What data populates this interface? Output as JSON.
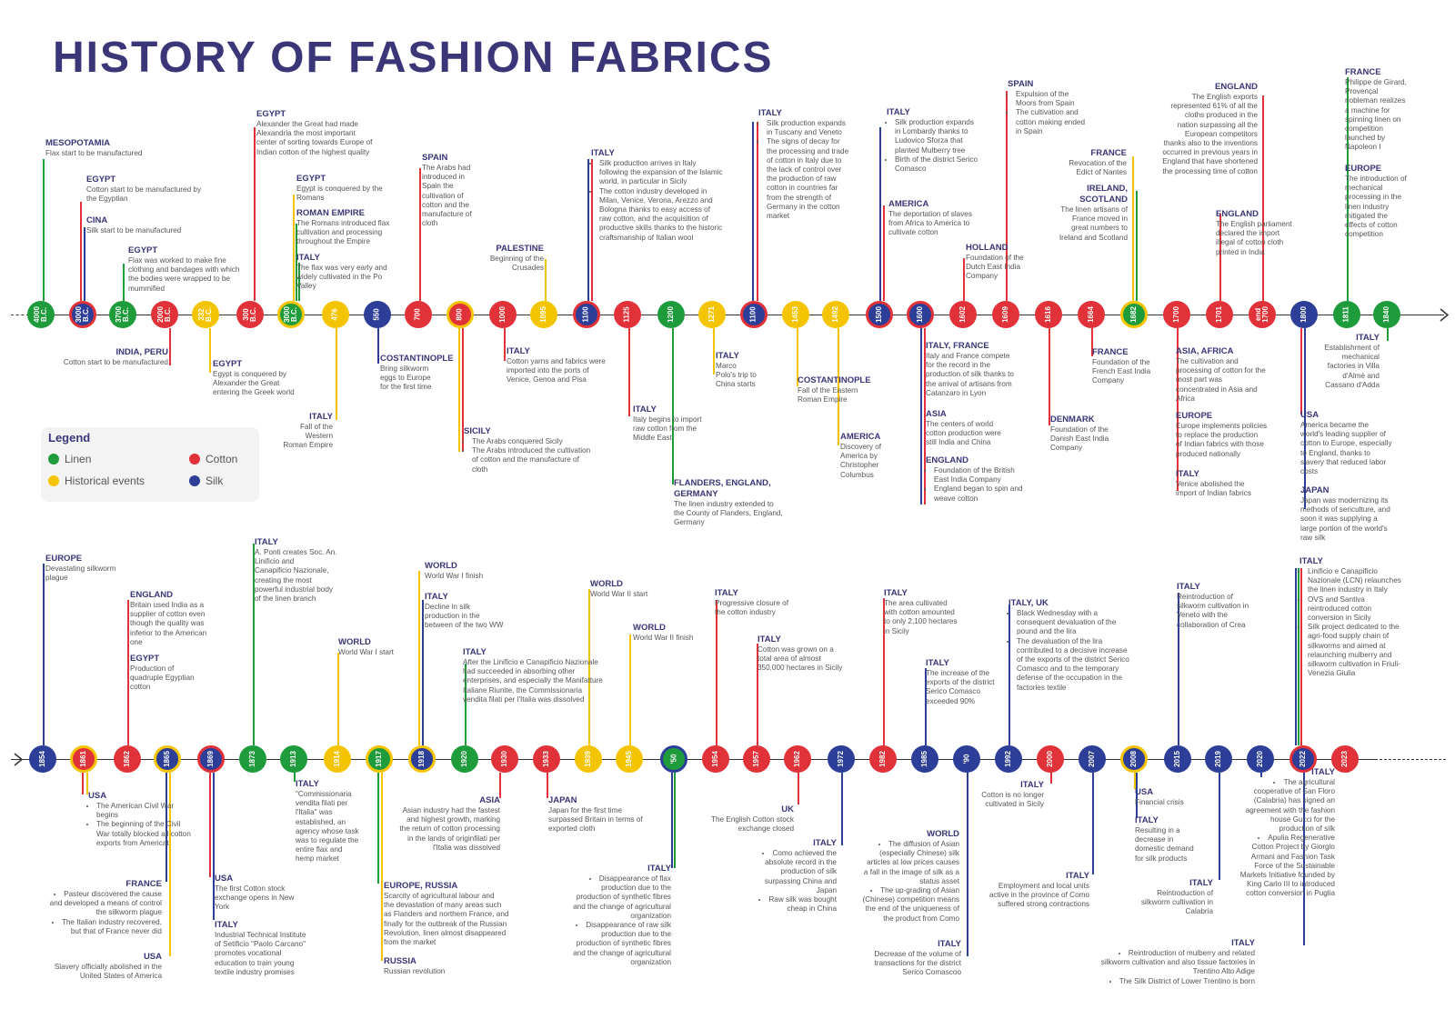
{
  "title": "HISTORY OF FASHION FABRICS",
  "colors": {
    "linen": "#1e9c3c",
    "cotton": "#e03238",
    "historical": "#f5c400",
    "silk": "#2c3e98",
    "heading": "#3a3678",
    "text": "#555555"
  },
  "legend": {
    "title": "Legend",
    "items": [
      {
        "label": "Linen",
        "key": "linen"
      },
      {
        "label": "Cotton",
        "key": "cotton"
      },
      {
        "label": "Historical events",
        "key": "historical"
      },
      {
        "label": "Silk",
        "key": "silk"
      }
    ]
  },
  "timeline_top": [
    {
      "label": "4000\nB.C.",
      "type": "linen"
    },
    {
      "label": "3000\nB.C.",
      "type": "silk",
      "ring": "cotton"
    },
    {
      "label": "3700\nB.C.",
      "type": "linen"
    },
    {
      "label": "2000\nB.C.",
      "type": "cotton"
    },
    {
      "label": "332\nB.C.",
      "type": "historical"
    },
    {
      "label": "300\nB.C.",
      "type": "cotton"
    },
    {
      "label": "3000\nB.C.",
      "type": "linen",
      "ring": "historical"
    },
    {
      "label": "476",
      "type": "historical"
    },
    {
      "label": "550",
      "type": "silk"
    },
    {
      "label": "700",
      "type": "cotton"
    },
    {
      "label": "800",
      "type": "cotton",
      "ring": "historical"
    },
    {
      "label": "1000",
      "type": "cotton"
    },
    {
      "label": "1095",
      "type": "historical"
    },
    {
      "label": "1100",
      "type": "silk",
      "ring": "cotton"
    },
    {
      "label": "1125",
      "type": "cotton"
    },
    {
      "label": "1200",
      "type": "linen"
    },
    {
      "label": "1271",
      "type": "historical"
    },
    {
      "label": "1100",
      "type": "silk",
      "ring": "cotton"
    },
    {
      "label": "1453",
      "type": "historical"
    },
    {
      "label": "1492",
      "type": "historical"
    },
    {
      "label": "1500",
      "type": "silk",
      "ring": "cotton"
    },
    {
      "label": "1600",
      "type": "silk",
      "ring": "cotton"
    },
    {
      "label": "1602",
      "type": "cotton"
    },
    {
      "label": "1609",
      "type": "cotton"
    },
    {
      "label": "1616",
      "type": "cotton"
    },
    {
      "label": "1664",
      "type": "cotton"
    },
    {
      "label": "1682",
      "type": "linen",
      "ring": "historical"
    },
    {
      "label": "1700",
      "type": "cotton"
    },
    {
      "label": "1701",
      "type": "cotton"
    },
    {
      "label": "end\n1700",
      "type": "cotton"
    },
    {
      "label": "1800",
      "type": "silk"
    },
    {
      "label": "1811",
      "type": "linen"
    },
    {
      "label": "1840",
      "type": "linen"
    }
  ],
  "timeline_bottom": [
    {
      "label": "1854",
      "type": "silk"
    },
    {
      "label": "1861",
      "type": "cotton",
      "ring": "historical"
    },
    {
      "label": "1862",
      "type": "cotton"
    },
    {
      "label": "1865",
      "type": "silk",
      "ring": "historical"
    },
    {
      "label": "1869",
      "type": "silk",
      "ring": "cotton"
    },
    {
      "label": "1873",
      "type": "linen"
    },
    {
      "label": "1913",
      "type": "linen"
    },
    {
      "label": "1914",
      "type": "historical"
    },
    {
      "label": "1917",
      "type": "linen",
      "ring": "historical"
    },
    {
      "label": "1918",
      "type": "silk",
      "ring": "historical"
    },
    {
      "label": "1920",
      "type": "linen"
    },
    {
      "label": "1930",
      "type": "cotton"
    },
    {
      "label": "1933",
      "type": "cotton"
    },
    {
      "label": "1939",
      "type": "historical"
    },
    {
      "label": "1945",
      "type": "historical"
    },
    {
      "label": "'50",
      "type": "linen",
      "ring": "silk"
    },
    {
      "label": "1954",
      "type": "cotton"
    },
    {
      "label": "1957",
      "type": "cotton"
    },
    {
      "label": "1962",
      "type": "cotton"
    },
    {
      "label": "1972",
      "type": "silk"
    },
    {
      "label": "1982",
      "type": "cotton"
    },
    {
      "label": "1985",
      "type": "silk"
    },
    {
      "label": "'90",
      "type": "silk"
    },
    {
      "label": "1992",
      "type": "silk"
    },
    {
      "label": "2000",
      "type": "cotton"
    },
    {
      "label": "2007",
      "type": "silk"
    },
    {
      "label": "2008",
      "type": "silk",
      "ring": "historical"
    },
    {
      "label": "2015",
      "type": "silk"
    },
    {
      "label": "2019",
      "type": "silk"
    },
    {
      "label": "2020",
      "type": "silk"
    },
    {
      "label": "2022",
      "type": "silk",
      "ring": "cotton"
    },
    {
      "label": "2023",
      "type": "cotton",
      "ring": "cotton"
    }
  ],
  "annotations": [
    {
      "h": "MESOPOTAMIA",
      "b": "Flax start to be manufactured",
      "c": "linen"
    },
    {
      "h": "EGYPT",
      "b": "Cotton start to be manufactured by\nthe Egyptian",
      "c": "cotton"
    },
    {
      "h": "CINA",
      "b": "Silk start to be manufactured",
      "c": "silk"
    },
    {
      "h": "EGYPT",
      "b": "Flax was worked to make fine\nclothing and bandages with which\nthe bodies were wrapped to be\nmummified",
      "c": "linen"
    },
    {
      "h": "EGYPT",
      "b": "Alexander the Great had made\nAlexandria the most important\ncenter of sorting towards Europe of\nIndian cotton of the highest quality",
      "c": "cotton"
    },
    {
      "h": "EGYPT",
      "b": "Egypt is conquered by the\nRomans",
      "c": "historical"
    },
    {
      "h": "ROMAN EMPIRE",
      "b": "The Romans introduced flax\ncultivation and processing\nthroughout the Empire",
      "c": "linen"
    },
    {
      "h": "ITALY",
      "b": "The flax was very early and\nwidely cultivated in the Po\nValley",
      "c": "linen"
    },
    {
      "h": "INDIA, PERU",
      "b": "Cotton start to be manufactured",
      "c": "cotton"
    },
    {
      "h": "EGYPT",
      "b": "Egypt is conquered by\nAlexander the Great\nentering the Greek world",
      "c": "historical"
    },
    {
      "h": "ITALY",
      "b": "Fall of the Western\nRoman Empire",
      "c": "historical"
    },
    {
      "h": "COSTANTINOPLE",
      "b": "Bring silkworm\neggs to Europe\nfor the first time",
      "c": "silk"
    },
    {
      "h": "SPAIN",
      "b": "The Arabs had\nintroduced in\nSpain the\ncultivation of\ncotton and the\nmanufacture of\ncloth",
      "c": "cotton"
    },
    {
      "h": "SICILY",
      "list": [
        "The Arabs conquered Sicily",
        "The Arabs introduced the cultivation of cotton and the manufacture of cloth"
      ],
      "c": "cotton"
    },
    {
      "h": "ITALY",
      "b": "Cotton yarns and fabrics were\nimported into the ports of\nVenice, Genoa and Pisa",
      "c": "cotton"
    },
    {
      "h": "PALESTINE",
      "b": "Beginning of the\nCrusades",
      "c": "historical"
    },
    {
      "h": "ITALY",
      "list": [
        "Silk production arrives in Italy following the expansion of the Islamic world, in particular in Sicily",
        "The cotton industry developed in Milan, Venice, Verona, Arezzo and Bologna thanks to easy access of raw cotton, and the acquisition of productive skills thanks to the historic craftsmanship of Italian wool"
      ],
      "c": "silk"
    },
    {
      "h": "ITALY",
      "b": "Italy begins to import\nraw cotton from the\nMiddle East",
      "c": "cotton"
    },
    {
      "h": "FLANDERS, ENGLAND,\nGERMANY",
      "b": "The linen industry extended to\nthe County of Flanders, England,\nGermany",
      "c": "linen"
    },
    {
      "h": "ITALY",
      "b": "Marco\nPolo's trip to\nChina starts",
      "c": "historical"
    },
    {
      "h": "ITALY",
      "list": [
        "Silk production expands in Tuscany and Veneto",
        "The signs of decay for the processing and trade of cotton in Italy due to the lack of control over the production of raw cotton in countries far from the strength of Germany in the cotton market"
      ],
      "c": "silk"
    },
    {
      "h": "COSTANTINOPLE",
      "b": "Fall of the Eastern\nRoman Empire",
      "c": "historical"
    },
    {
      "h": "AMERICA",
      "b": "Discovery of\nAmerica by\nChristopher\nColumbus",
      "c": "historical"
    },
    {
      "h": "ITALY",
      "list": [
        "Silk production expands in Lombardy thanks to Ludovico Sforza that planted Mulberry tree",
        "Birth of the district Serico Comasco"
      ],
      "c": "silk"
    },
    {
      "h": "AMERICA",
      "b": "The deportation of slaves\nfrom Africa to America to\ncultivate cotton",
      "c": "cotton"
    },
    {
      "h": "ITALY, FRANCE",
      "b": "Italy and France compete\nfor the record in the\nproduction of silk thanks to\nthe arrival of artisans from\nCatanzaro in Lyon",
      "c": "silk"
    },
    {
      "h": "ASIA",
      "b": "The centers of world\ncotton production were\nstill India and China",
      "c": "cotton"
    },
    {
      "h": "ENGLAND",
      "list": [
        "Foundation of the British East India Company",
        "England began to spin and weave cotton"
      ],
      "c": "cotton"
    },
    {
      "h": "HOLLAND",
      "b": "Foundation of the\nDutch East India\nCompany",
      "c": "cotton"
    },
    {
      "h": "SPAIN",
      "list": [
        "Expulsion of the Moors from Spain",
        "The cultivation and cotton making ended in Spain"
      ],
      "c": "cotton"
    },
    {
      "h": "DENMARK",
      "b": "Foundation of the\nDanish East India\nCompany",
      "c": "cotton"
    },
    {
      "h": "FRANCE",
      "b": "Foundation of the\nFrench East India\nCompany",
      "c": "cotton"
    },
    {
      "h": "FRANCE",
      "b": "Revocation of the\nEdict of Nantes",
      "c": "historical"
    },
    {
      "h": "IRELAND,\nSCOTLAND",
      "b": "The linen artisans of\nFrance moved in\ngreat numbers to\nIreland and Scotland",
      "c": "linen"
    },
    {
      "h": "ENGLAND",
      "b": "The English exports\nrepresented 61% of all the\ncloths produced in the\nnation surpassing all the\nEuropean competitors\nthanks also to the inventions\noccurred in previous years in\nEngland that have shortened\nthe processing time of cotton",
      "c": "cotton"
    },
    {
      "h": "ENGLAND",
      "b": "The English parliament\ndeclared the import\nillegal of cotton cloth\nprinted in India",
      "c": "cotton"
    },
    {
      "h": "ASIA, AFRICA",
      "b": "The cultivation and\nprocessing of cotton for the\nmost part was\nconcentrated in Asia and\nAfrica",
      "c": "cotton"
    },
    {
      "h": "EUROPE",
      "b": "Europe implements policies\nto replace the production\nof Indian fabrics with those\nproduced nationally",
      "c": "cotton"
    },
    {
      "h": "ITALY",
      "b": "Venice abolished the\nimport of Indian fabrics",
      "c": "cotton"
    },
    {
      "h": "FRANCE",
      "b": "Philippe de Girard,\nProvençal\nnobleman realizes\na machine for\nspinning linen on\ncompetition\nlaunched by\nNapoleon I",
      "c": "linen"
    },
    {
      "h": "EUROPE",
      "b": "The introduction of\nmechanical\nprocessing in the\nlinen industry\nmitigated the\neffects of cotton\ncompetition",
      "c": "linen"
    },
    {
      "h": "ITALY",
      "b": "Establishment of\nmechanical\nfactories in Villa\nd'Almè and\nCassano d'Adda",
      "c": "linen"
    },
    {
      "h": "USA",
      "b": "America became the\nworld's leading supplier of\ncotton to Europe, especially\nto England, thanks to\nslavery that reduced labor\ncosts",
      "c": "cotton"
    },
    {
      "h": "JAPAN",
      "b": "Japan was modernizing its\nmethods of sericulture, and\nsoon it was supplying a\nlarge portion of the world's\nraw silk",
      "c": "silk"
    },
    {
      "h": "EUROPE",
      "b": "Devastating silkworm\nplague",
      "c": "silk"
    },
    {
      "h": "ENGLAND",
      "b": "Britain used India as a\nsupplier of cotton even\nthough the quality was\ninferior to the American\none",
      "c": "cotton"
    },
    {
      "h": "EGYPT",
      "b": "Production of\nquadruple Egyptian\ncotton",
      "c": "cotton"
    },
    {
      "h": "ITALY",
      "b": "A. Ponti creates Soc. An.\nLinificio and\nCanapificio Nazionale,\ncreating the most\npowerful industrial body\nof the linen branch",
      "c": "linen"
    },
    {
      "h": "WORLD",
      "b": "World  War I start",
      "c": "historical"
    },
    {
      "h": "WORLD",
      "b": "World  War I finish",
      "c": "historical"
    },
    {
      "h": "ITALY",
      "b": "Decline in silk\nproduction in the\nbetween of the two WW",
      "c": "silk"
    },
    {
      "h": "ITALY",
      "b": "After the Linificio e Canapificio Nazionale\nhad succeeded in absorbing other\nenterprises, and especially the Manifatture\nItaliane Riunite, the Commissionaria\nvendita filati per l'Italia was dissolved",
      "c": "linen"
    },
    {
      "h": "WORLD",
      "b": "World  War II start",
      "c": "historical"
    },
    {
      "h": "WORLD",
      "b": "World  War II finish",
      "c": "historical"
    },
    {
      "h": "ITALY",
      "b": "Progressive closure of\nthe cotton industry",
      "c": "cotton"
    },
    {
      "h": "ITALY",
      "b": "Cotton was grown on a\ntotal area of almost\n350,000 hectares in Sicily",
      "c": "cotton"
    },
    {
      "h": "ITALY",
      "b": "The area cultivated\nwith cotton amounted\nto only 2,100 hectares\nin Sicily",
      "c": "cotton"
    },
    {
      "h": "ITALY",
      "b": "The increase of the\nexports of the district\nSerico Comasco\nexceeded 90%",
      "c": "silk"
    },
    {
      "h": "ITALY, UK",
      "list": [
        "Black Wednesday with a consequent devaluation of the pound and the lira",
        "The devaluation of the lira contributed to a decisive increase of the exports of the district Serico Comasco and to the temporary defense of the occupation in the factories textile"
      ],
      "c": "silk"
    },
    {
      "h": "ITALY",
      "b": "Reintroduction of\nsilkworm cultivation in\nVeneto with the\ncollaboration of Crea",
      "c": "silk"
    },
    {
      "h": "ITALY",
      "list": [
        "Linificio e Canapificio Nazionale (LCN) relaunches the linen industry in Italy",
        "OVS and Santiva reintroduced cotton conversion in Sicily",
        "Silk project dedicated to the agri-food supply chain of silkworms and aimed at relaunching mulberry and silkworm cultivation in Friuli-Venezia Giulia"
      ],
      "c": "silk"
    },
    {
      "h": "USA",
      "list": [
        "The American Civil War begins",
        "The beginning of the Civil War totally blocked all cotton exports from Americat"
      ],
      "c": "cotton"
    },
    {
      "h": "FRANCE",
      "list": [
        "Pasteur discovered the cause and developed a means of control the silkworm plague",
        "The Italian industry recovered, but that of France never did"
      ],
      "c": "silk"
    },
    {
      "h": "USA",
      "b": "Slavery officially abolished in the\nUnited States of America",
      "c": "historical"
    },
    {
      "h": "USA",
      "b": "The first Cotton stock\nexchange opens in New\nYork",
      "c": "cotton"
    },
    {
      "h": "ITALY",
      "b": "Industrial Technical Institute\nof Setificio \"Paolo Carcano\"\npromotes vocational\neducation to train young\ntextile industry promises",
      "c": "silk"
    },
    {
      "h": "ITALY",
      "b": "\"Commissionaria\nvendita filati per\nl'Italia\" was\nestablished, an\nagency whose task\nwas to regulate the\nentire flax and\nhemp market",
      "c": "linen"
    },
    {
      "h": "EUROPE, RUSSIA",
      "b": "Scarcity of agricultural labour and\nthe devastation of many areas such\nas Flanders and northern France, and\nfinally for the outbreak of the Russian\nRevolution, linen almost disappeared\nfrom the market",
      "c": "linen"
    },
    {
      "h": "RUSSIA",
      "b": "Russian revolution",
      "c": "historical"
    },
    {
      "h": "ASIA",
      "b": "Asian industry had the fastest\nand highest growth, marking\nthe return of cotton processing\nin the lands of originfilati per\nl'Italia was dissolved",
      "c": "cotton"
    },
    {
      "h": "JAPAN",
      "b": "Japan for the first time\nsurpassed Britain in terms of\nexported cloth",
      "c": "cotton"
    },
    {
      "h": "ITALY",
      "list": [
        "Disappearance of flax production due to the production of synthetic fibres and the change of agricultural organization",
        "Disappearance of raw silk production due to the production of synthetic fibres and the change of agricultural organization"
      ],
      "c": "silk"
    },
    {
      "h": "UK",
      "b": "The English Cotton stock\nexchange closed",
      "c": "cotton"
    },
    {
      "h": "ITALY",
      "list": [
        "Como achieved the absolute record in the production of silk surpassing China and Japan",
        "Raw silk was bought cheap in China"
      ],
      "c": "silk"
    },
    {
      "h": "WORLD",
      "list": [
        "The diffusion of Asian (especially Chinese) silk articles at low prices causes a fall in the image of silk as a status asset",
        "The up-grading of Asian (Chinese) competition means the end of the uniqueness of the product from Como"
      ],
      "c": "silk"
    },
    {
      "h": "ITALY",
      "b": "Decrease of the volume of\ntransactions for the district\nSerico Comascoo",
      "c": "silk"
    },
    {
      "h": "ITALY",
      "b": "Cotton is no longer\ncultivated in Sicily",
      "c": "cotton"
    },
    {
      "h": "ITALY",
      "b": "Employment and local units\nactive in the province of Como\nsuffered strong contractions",
      "c": "silk"
    },
    {
      "h": "USA",
      "b": "Financial crisis",
      "c": "historical"
    },
    {
      "h": "ITALY",
      "b": "Resulting in a\ndecrease in\ndomestic demand\nfor silk products",
      "c": "silk"
    },
    {
      "h": "ITALY",
      "b": "Reintroduction of\nsilkworm cultivation in\nCalabria",
      "c": "silk"
    },
    {
      "h": "ITALY",
      "list": [
        "The agricultural cooperative of San Floro (Calabria) has signed an agreement with the fashion house Gucci for the production of silk",
        "Apulia Regenerative Cotton Project by Giorgio Armani and Fashion Task Force of the Sustainable Markets Initiative founded by King Carlo III to introduced cotton conversion in Puglia"
      ],
      "c": "cotton"
    },
    {
      "h": "ITALY",
      "list": [
        "Reintroduction of mulberry and related silkworm cultivation and also tissue factories in Trentino Alto Adige",
        "The Silk District of Lower Trentino is born"
      ],
      "c": "silk"
    }
  ]
}
